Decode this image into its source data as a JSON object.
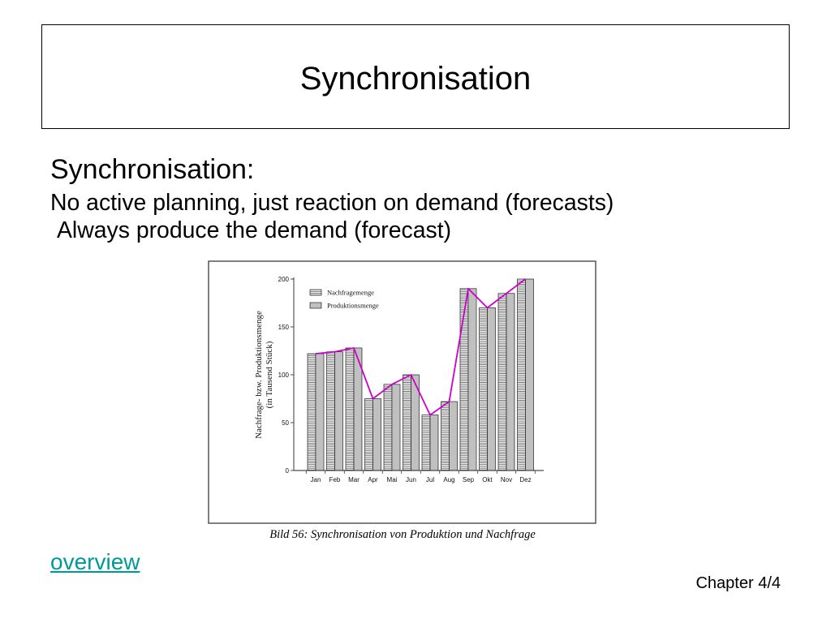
{
  "slide": {
    "title": "Synchronisation",
    "heading": "Synchronisation:",
    "lines": [
      "No active planning, just reaction on demand (forecasts)",
      "Always produce the demand (forecast)"
    ],
    "link_label": "overview",
    "footer": "Chapter 4/4"
  },
  "colors": {
    "link": "#009999",
    "overlay_line": "#cc00cc",
    "text": "#000000"
  },
  "chart_data": {
    "type": "bar",
    "categories": [
      "Jan",
      "Feb",
      "Mar",
      "Apr",
      "Mai",
      "Jun",
      "Jul",
      "Aug",
      "Sep",
      "Okt",
      "Nov",
      "Dez"
    ],
    "series": [
      {
        "name": "Nachfragemenge",
        "type": "bar",
        "values": [
          122,
          124,
          128,
          75,
          90,
          100,
          58,
          72,
          190,
          170,
          185,
          200
        ]
      },
      {
        "name": "Produktionsmenge",
        "type": "bar",
        "values": [
          122,
          124,
          128,
          75,
          90,
          100,
          58,
          72,
          190,
          170,
          185,
          200
        ]
      },
      {
        "type": "line",
        "values": [
          122,
          124,
          128,
          75,
          90,
          100,
          58,
          72,
          190,
          170,
          185,
          200
        ]
      }
    ],
    "ylabel": [
      "Nachfrage- bzw. Produktionsmenge",
      "(in Tausend Stück)"
    ],
    "yticks": [
      "0",
      "50",
      "100",
      "150",
      "200"
    ],
    "ylim": [
      0,
      200
    ],
    "legend": "top-left",
    "grid": false,
    "caption": "Bild 56: Synchronisation von Produktion und Nachfrage"
  }
}
